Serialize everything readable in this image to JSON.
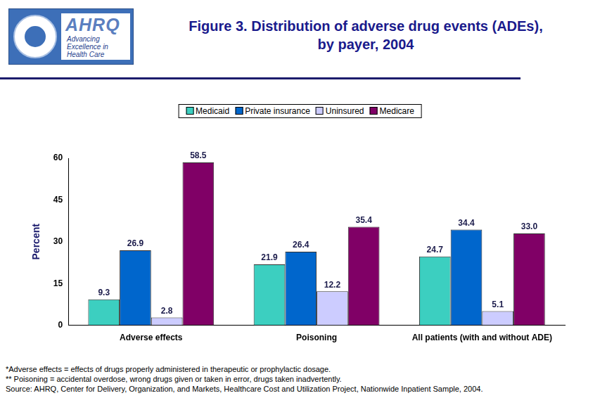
{
  "chart_data": {
    "type": "bar",
    "title": [
      "Figure 3. Distribution of adverse drug events (ADEs),",
      "by payer, 2004"
    ],
    "logo": {
      "name": "AHRQ",
      "tagline": [
        "Advancing",
        "Excellence in",
        "Health Care"
      ]
    },
    "y_label": "Percent",
    "categories": [
      "Adverse effects",
      "Poisoning",
      "All patients (with and without ADE)"
    ],
    "series": [
      {
        "name": "Medicaid",
        "color": "#3ccfc0",
        "values": [
          9.3,
          21.9,
          24.7
        ]
      },
      {
        "name": "Private insurance",
        "color": "#0066cc",
        "values": [
          26.9,
          26.4,
          34.4
        ]
      },
      {
        "name": "Uninsured",
        "color": "#ccccff",
        "values": [
          2.8,
          12.2,
          5.1
        ]
      },
      {
        "name": "Medicare",
        "color": "#800066",
        "values": [
          58.5,
          35.4,
          33.0
        ],
        "value_labels": [
          "58.5",
          "35.4",
          "33.0"
        ]
      }
    ],
    "ylim": [
      0,
      60
    ],
    "yticks": [
      0,
      15,
      30,
      45,
      60
    ],
    "grid": false,
    "legend": "top",
    "data_labels": true,
    "notes": [
      "*Adverse effects = effects of drugs properly administered in therapeutic or prophylactic dosage.",
      "** Poisoning = accidental overdose, wrong drugs given or taken in error, drugs taken inadvertently.",
      "Source: AHRQ, Center for Delivery, Organization, and Markets, Healthcare Cost and Utilization Project, Nationwide Inpatient Sample, 2004."
    ]
  }
}
